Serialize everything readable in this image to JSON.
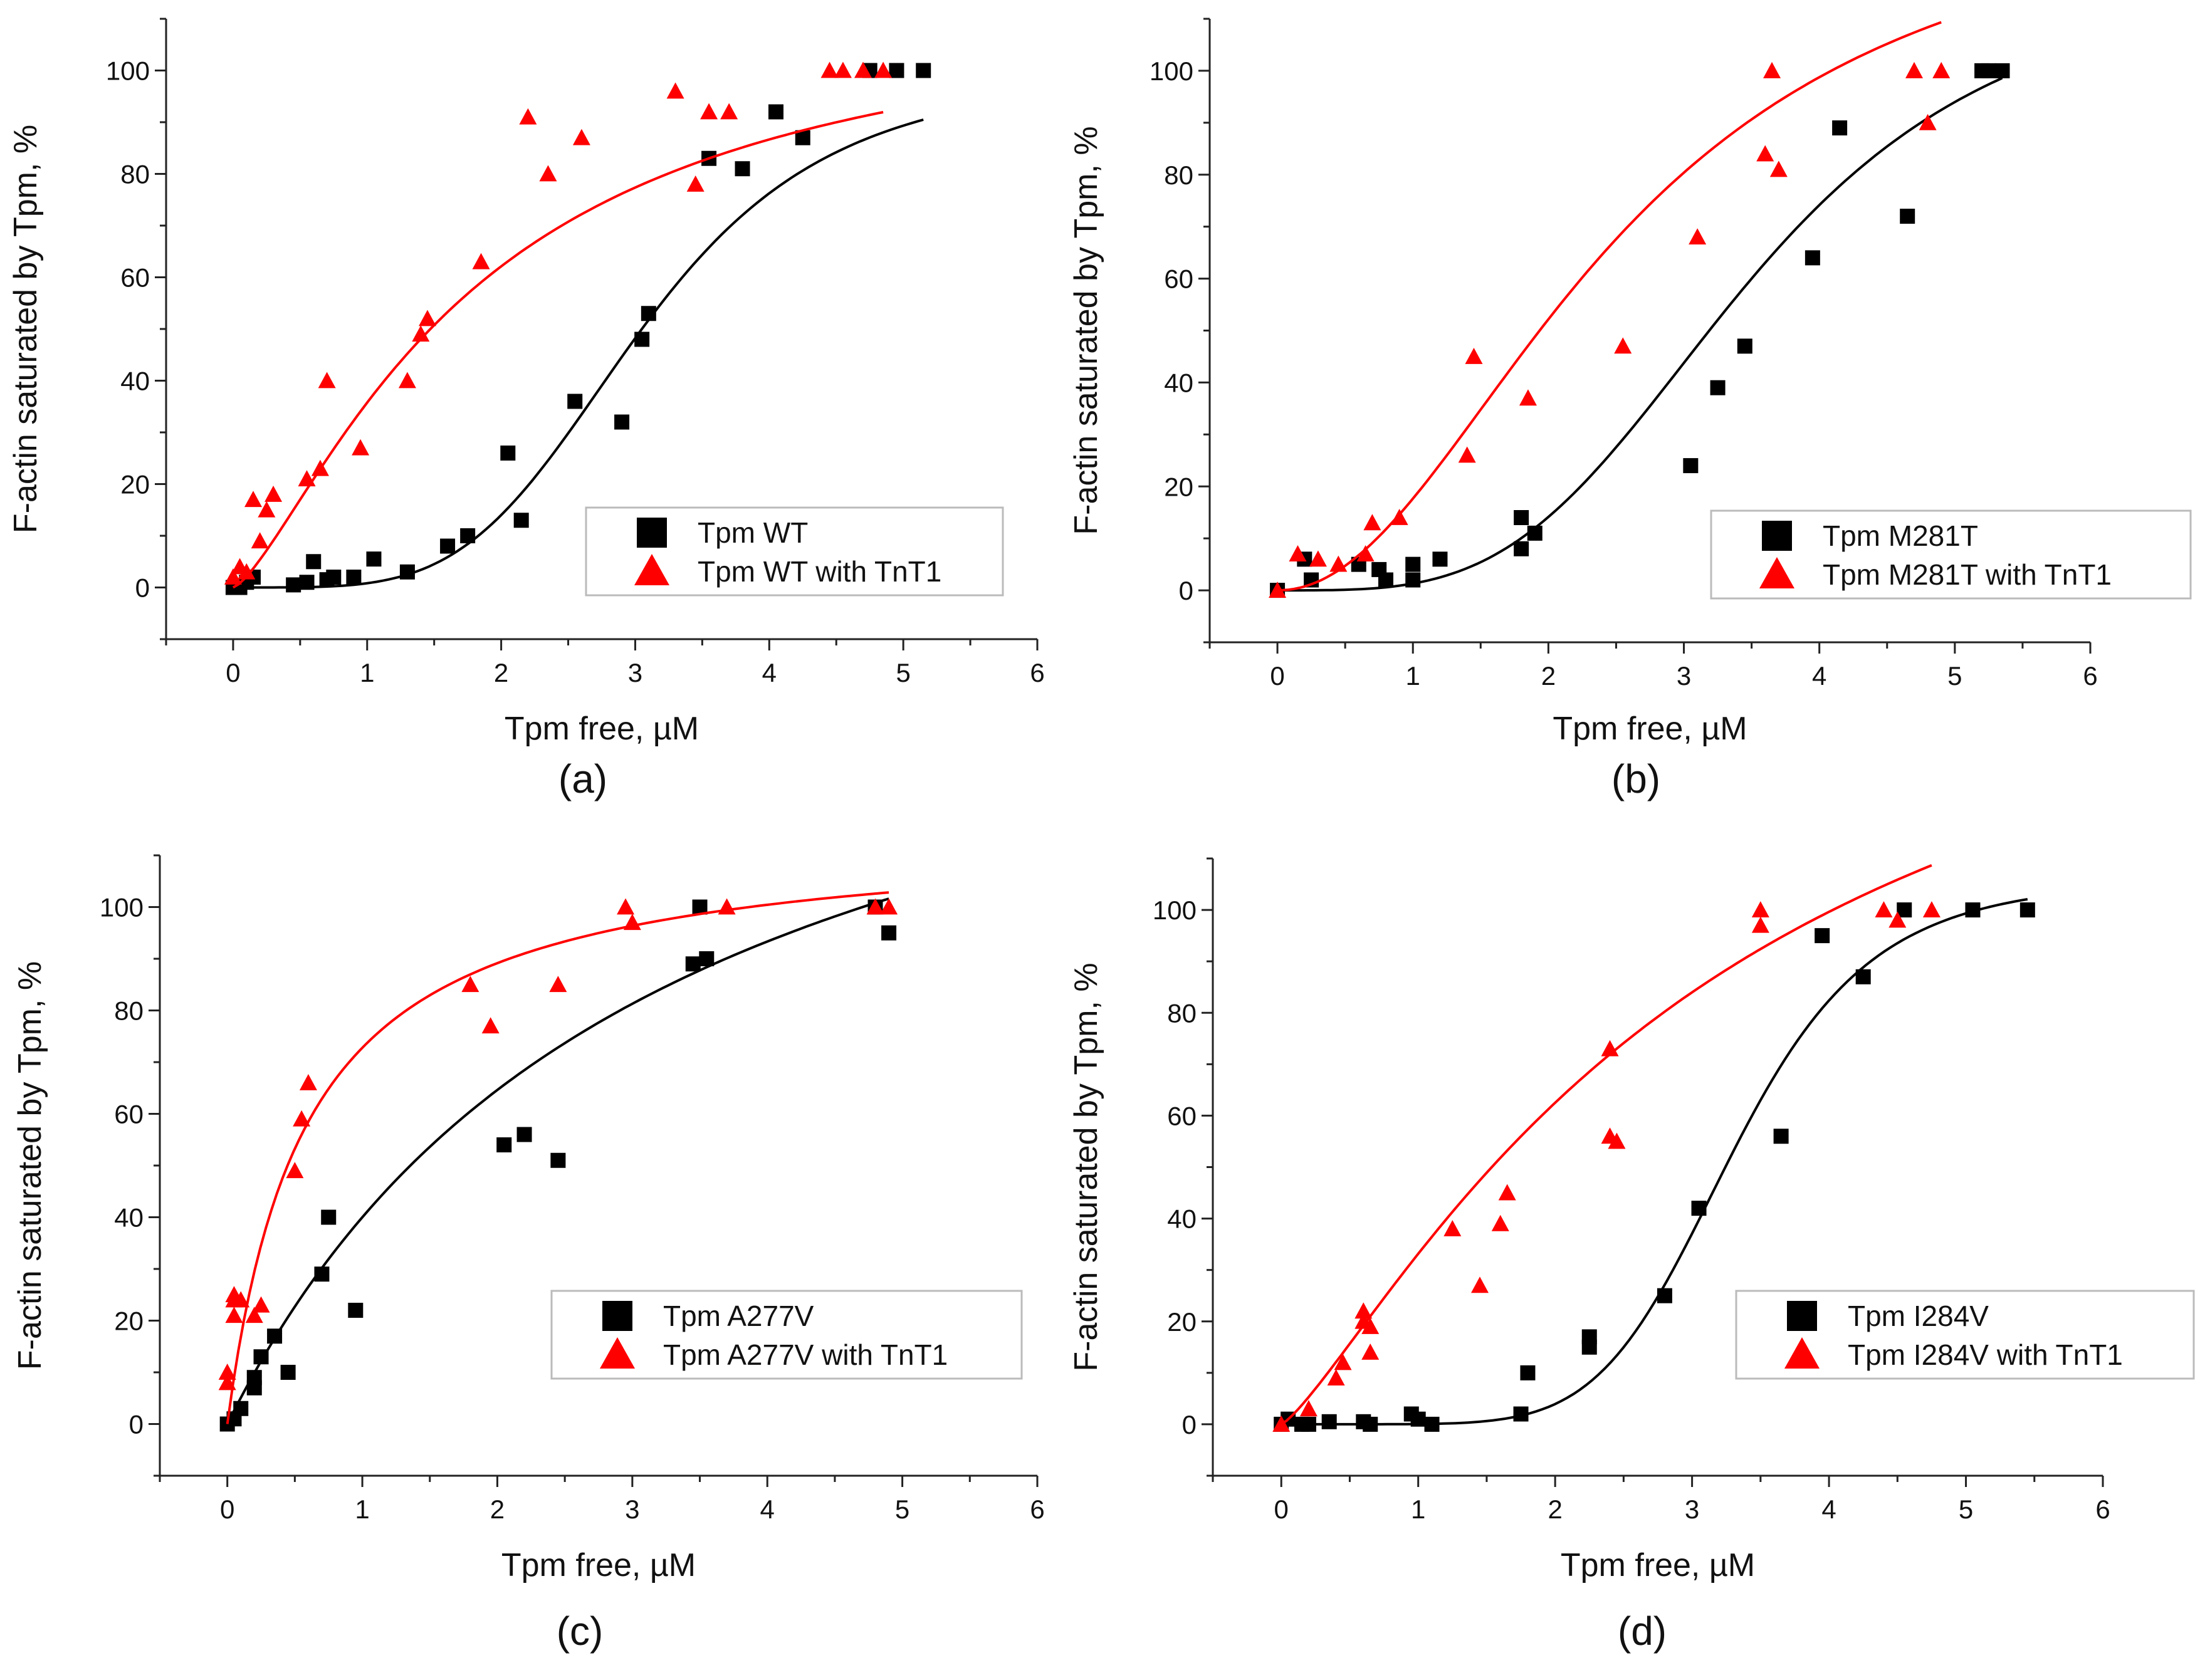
{
  "colors": {
    "black_series": "#000000",
    "red_series": "#ff0000"
  },
  "chart_data": [
    {
      "type": "scatter",
      "caption": "(a)",
      "xlabel": "Tpm free, µM",
      "ylabel": "F-actin saturated by Tpm, %",
      "xlim": [
        -0.5,
        6
      ],
      "ylim": [
        -10,
        110
      ],
      "xticks": [
        0,
        1,
        2,
        3,
        4,
        5,
        6
      ],
      "yticks": [
        0,
        20,
        40,
        60,
        80,
        100
      ],
      "legend_position": "bottom-right",
      "series": [
        {
          "name": "Tpm WT",
          "color": "#000000",
          "marker": "square",
          "x": [
            0,
            0.05,
            0.1,
            0.15,
            0.45,
            0.55,
            0.6,
            0.7,
            0.75,
            0.9,
            1.05,
            1.3,
            1.6,
            1.75,
            2.05,
            2.15,
            2.55,
            2.9,
            3.05,
            3.1,
            3.55,
            3.8,
            4.05,
            4.25,
            4.75,
            4.95,
            5.15
          ],
          "y": [
            0,
            0,
            1,
            2,
            0.5,
            1,
            5,
            1.5,
            2,
            2,
            5.5,
            3,
            8,
            10,
            26,
            13,
            36,
            32,
            48,
            53,
            83,
            81,
            92,
            87,
            100,
            100,
            100
          ],
          "fit": {
            "model": "hill",
            "start": 0,
            "end": 5.15,
            "K": 3.05,
            "n": 4.3,
            "scale": 100
          }
        },
        {
          "name": "Tpm WT with TnT1",
          "color": "#ff0000",
          "marker": "triangle",
          "x": [
            0,
            0.05,
            0.1,
            0.15,
            0.2,
            0.25,
            0.3,
            0.55,
            0.65,
            0.7,
            0.95,
            1.3,
            1.4,
            1.45,
            1.85,
            2.2,
            2.35,
            2.6,
            3.3,
            3.45,
            3.55,
            3.7,
            4.45,
            4.55,
            4.7,
            4.85
          ],
          "y": [
            2,
            4,
            3,
            17,
            9,
            15,
            18,
            21,
            23,
            40,
            27,
            40,
            49,
            52,
            63,
            91,
            80,
            87,
            96,
            78,
            92,
            92,
            100,
            100,
            100,
            100
          ],
          "fit": {
            "model": "hill",
            "start": 0,
            "end": 4.85,
            "K": 1.78,
            "n": 1.38,
            "scale": 115
          }
        }
      ]
    },
    {
      "type": "scatter",
      "caption": "(b)",
      "xlabel": "Tpm free, µM",
      "ylabel": "F-actin saturated by Tpm, %",
      "xlim": [
        -0.5,
        6
      ],
      "ylim": [
        -10,
        110
      ],
      "xticks": [
        0,
        1,
        2,
        3,
        4,
        5,
        6
      ],
      "yticks": [
        0,
        20,
        40,
        60,
        80,
        100
      ],
      "legend_position": "bottom-right",
      "series": [
        {
          "name": "Tpm M281T",
          "color": "#000000",
          "marker": "square",
          "x": [
            0,
            0.2,
            0.25,
            0.6,
            0.75,
            0.8,
            1.0,
            1.0,
            1.2,
            1.8,
            1.8,
            1.9,
            3.05,
            3.25,
            3.45,
            3.95,
            4.15,
            4.65,
            5.2,
            5.25,
            5.35
          ],
          "y": [
            0,
            6,
            2,
            5,
            4,
            2,
            5,
            2,
            6,
            8,
            14,
            11,
            24,
            39,
            47,
            64,
            89,
            72,
            100,
            100,
            100
          ],
          "fit": {
            "model": "hill",
            "start": 0,
            "end": 5.35,
            "K": 3.5,
            "n": 3.6,
            "scale": 120
          }
        },
        {
          "name": "Tpm M281T with TnT1",
          "color": "#ff0000",
          "marker": "triangle",
          "x": [
            0,
            0.15,
            0.3,
            0.45,
            0.65,
            0.7,
            0.9,
            1.4,
            1.45,
            1.85,
            2.55,
            3.1,
            3.6,
            3.65,
            3.7,
            4.7,
            4.8,
            4.9
          ],
          "y": [
            0,
            7,
            6,
            5,
            7,
            13,
            14,
            26,
            45,
            37,
            47,
            68,
            84,
            100,
            81,
            100,
            90,
            100
          ],
          "fit": {
            "model": "hill",
            "start": 0,
            "end": 4.9,
            "K": 2.55,
            "n": 2.05,
            "scale": 138
          }
        }
      ]
    },
    {
      "type": "scatter",
      "caption": "(c)",
      "xlabel": "Tpm free, µM",
      "ylabel": "F-actin saturated by Tpm, %",
      "xlim": [
        -0.5,
        6
      ],
      "ylim": [
        -10,
        110
      ],
      "xticks": [
        0,
        1,
        2,
        3,
        4,
        5,
        6
      ],
      "yticks": [
        0,
        20,
        40,
        60,
        80,
        100
      ],
      "legend_position": "bottom-right",
      "series": [
        {
          "name": "Tpm A277V",
          "color": "#000000",
          "marker": "square",
          "x": [
            0,
            0.05,
            0.1,
            0.2,
            0.2,
            0.25,
            0.35,
            0.45,
            0.7,
            0.75,
            0.95,
            2.05,
            2.2,
            2.45,
            3.45,
            3.5,
            3.55,
            4.8,
            4.9
          ],
          "y": [
            0,
            1,
            3,
            7,
            9,
            13,
            17,
            10,
            29,
            40,
            22,
            54,
            56,
            51,
            89,
            100,
            90,
            100,
            95
          ],
          "fit": {
            "model": "hill",
            "start": 0,
            "end": 4.9,
            "K": 3.2,
            "n": 1.0,
            "scale": 168
          }
        },
        {
          "name": "Tpm A277V with TnT1",
          "color": "#ff0000",
          "marker": "triangle",
          "x": [
            0,
            0.0,
            0.05,
            0.05,
            0.05,
            0.1,
            0.2,
            0.25,
            0.5,
            0.55,
            0.6,
            1.8,
            1.95,
            2.45,
            2.95,
            3.0,
            3.7,
            4.8,
            4.9
          ],
          "y": [
            8,
            10,
            24,
            21,
            25,
            24,
            21,
            23,
            49,
            59,
            66,
            85,
            77,
            85,
            100,
            97,
            100,
            100,
            100
          ],
          "fit": {
            "model": "hill",
            "start": 0,
            "end": 4.9,
            "K": 0.58,
            "n": 1.0,
            "scale": 115
          }
        }
      ]
    },
    {
      "type": "scatter",
      "caption": "(d)",
      "xlabel": "Tpm free, µM",
      "ylabel": "F-actin saturated by Tpm, %",
      "xlim": [
        -0.5,
        6
      ],
      "ylim": [
        -10,
        110
      ],
      "xticks": [
        0,
        1,
        2,
        3,
        4,
        5,
        6
      ],
      "yticks": [
        0,
        20,
        40,
        60,
        80,
        100
      ],
      "legend_position": "bottom-right",
      "series": [
        {
          "name": "Tpm I284V",
          "color": "#000000",
          "marker": "square",
          "x": [
            0,
            0.05,
            0.15,
            0.2,
            0.35,
            0.6,
            0.65,
            0.95,
            1.0,
            1.1,
            1.75,
            1.8,
            2.25,
            2.25,
            2.8,
            3.05,
            3.65,
            3.95,
            4.25,
            4.55,
            5.05,
            5.45
          ],
          "y": [
            0,
            1,
            0,
            0,
            0.5,
            0.5,
            0,
            2,
            1,
            0,
            2,
            10,
            15,
            17,
            25,
            42,
            56,
            95,
            87,
            100,
            100,
            100
          ],
          "fit": {
            "model": "hill",
            "start": 0,
            "end": 5.45,
            "K": 3.3,
            "n": 6.5,
            "scale": 106
          }
        },
        {
          "name": "Tpm I284V with TnT1",
          "color": "#ff0000",
          "marker": "triangle",
          "x": [
            0,
            0.2,
            0.4,
            0.45,
            0.6,
            0.6,
            0.65,
            0.65,
            1.25,
            1.45,
            1.6,
            1.65,
            2.4,
            2.4,
            2.45,
            3.5,
            3.5,
            4.4,
            4.5,
            4.75
          ],
          "y": [
            0,
            3,
            9,
            12,
            22,
            20,
            19,
            14,
            38,
            27,
            39,
            45,
            73,
            56,
            55,
            100,
            97,
            100,
            98,
            100
          ],
          "fit": {
            "model": "hill",
            "start": 0,
            "end": 4.75,
            "K": 3.2,
            "n": 1.25,
            "scale": 175
          }
        }
      ]
    }
  ]
}
